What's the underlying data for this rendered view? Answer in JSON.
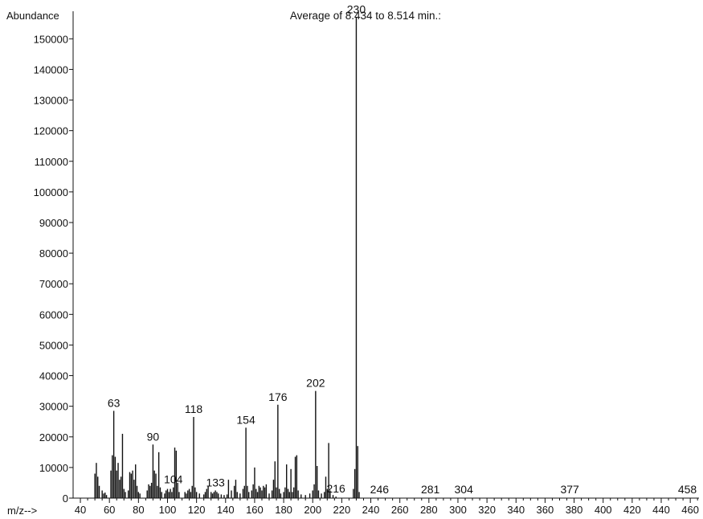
{
  "chart_data": {
    "type": "bar",
    "title": "Average of 8.434 to 8.514 min.:",
    "ylabel": "Abundance",
    "xlabel": "m/z-->",
    "xlim": [
      35,
      466
    ],
    "ylim": [
      0,
      159000
    ],
    "x_ticks": [
      40,
      60,
      80,
      100,
      120,
      140,
      160,
      180,
      200,
      220,
      240,
      260,
      280,
      300,
      320,
      340,
      360,
      380,
      400,
      420,
      440,
      460
    ],
    "y_ticks": [
      0,
      10000,
      20000,
      30000,
      40000,
      50000,
      60000,
      70000,
      80000,
      90000,
      100000,
      110000,
      120000,
      130000,
      140000,
      150000
    ],
    "grid": false,
    "peak_labels": [
      {
        "x": 63,
        "y": 28500,
        "label": "63"
      },
      {
        "x": 90,
        "y": 17500,
        "label": "90"
      },
      {
        "x": 104,
        "y": 3500,
        "label": "104"
      },
      {
        "x": 118,
        "y": 26500,
        "label": "118"
      },
      {
        "x": 133,
        "y": 2500,
        "label": "133"
      },
      {
        "x": 154,
        "y": 23000,
        "label": "154"
      },
      {
        "x": 176,
        "y": 30500,
        "label": "176"
      },
      {
        "x": 202,
        "y": 35000,
        "label": "202"
      },
      {
        "x": 216,
        "y": 500,
        "label": "216"
      },
      {
        "x": 230,
        "y": 157000,
        "label": "230"
      },
      {
        "x": 246,
        "y": 300,
        "label": "246"
      },
      {
        "x": 281,
        "y": 300,
        "label": "281"
      },
      {
        "x": 304,
        "y": 300,
        "label": "304"
      },
      {
        "x": 377,
        "y": 300,
        "label": "377"
      },
      {
        "x": 458,
        "y": 300,
        "label": "458"
      }
    ],
    "peaks": [
      {
        "x": 50,
        "y": 8000
      },
      {
        "x": 51,
        "y": 11500
      },
      {
        "x": 52,
        "y": 7000
      },
      {
        "x": 53,
        "y": 4000
      },
      {
        "x": 55,
        "y": 2500
      },
      {
        "x": 56,
        "y": 1500
      },
      {
        "x": 57,
        "y": 1800
      },
      {
        "x": 58,
        "y": 1000
      },
      {
        "x": 61,
        "y": 9000
      },
      {
        "x": 62,
        "y": 14000
      },
      {
        "x": 63,
        "y": 28500
      },
      {
        "x": 64,
        "y": 13500
      },
      {
        "x": 65,
        "y": 9000
      },
      {
        "x": 66,
        "y": 11500
      },
      {
        "x": 67,
        "y": 6000
      },
      {
        "x": 68,
        "y": 7000
      },
      {
        "x": 69,
        "y": 21000
      },
      {
        "x": 70,
        "y": 3000
      },
      {
        "x": 71,
        "y": 2000
      },
      {
        "x": 73,
        "y": 2500
      },
      {
        "x": 74,
        "y": 8500
      },
      {
        "x": 75,
        "y": 8000
      },
      {
        "x": 76,
        "y": 9000
      },
      {
        "x": 77,
        "y": 6000
      },
      {
        "x": 78,
        "y": 11000
      },
      {
        "x": 79,
        "y": 4000
      },
      {
        "x": 80,
        "y": 2000
      },
      {
        "x": 81,
        "y": 1500
      },
      {
        "x": 86,
        "y": 2500
      },
      {
        "x": 87,
        "y": 4500
      },
      {
        "x": 88,
        "y": 4000
      },
      {
        "x": 89,
        "y": 5000
      },
      {
        "x": 90,
        "y": 17500
      },
      {
        "x": 91,
        "y": 9000
      },
      {
        "x": 92,
        "y": 8000
      },
      {
        "x": 93,
        "y": 4000
      },
      {
        "x": 94,
        "y": 15000
      },
      {
        "x": 95,
        "y": 3500
      },
      {
        "x": 96,
        "y": 2000
      },
      {
        "x": 98,
        "y": 1500
      },
      {
        "x": 99,
        "y": 2500
      },
      {
        "x": 100,
        "y": 3000
      },
      {
        "x": 101,
        "y": 2000
      },
      {
        "x": 102,
        "y": 3000
      },
      {
        "x": 103,
        "y": 2000
      },
      {
        "x": 104,
        "y": 3500
      },
      {
        "x": 105,
        "y": 16500
      },
      {
        "x": 106,
        "y": 15500
      },
      {
        "x": 107,
        "y": 5000
      },
      {
        "x": 108,
        "y": 2000
      },
      {
        "x": 112,
        "y": 2000
      },
      {
        "x": 113,
        "y": 1500
      },
      {
        "x": 114,
        "y": 2500
      },
      {
        "x": 115,
        "y": 3000
      },
      {
        "x": 116,
        "y": 2000
      },
      {
        "x": 117,
        "y": 4000
      },
      {
        "x": 118,
        "y": 26500
      },
      {
        "x": 119,
        "y": 3500
      },
      {
        "x": 120,
        "y": 2000
      },
      {
        "x": 122,
        "y": 1500
      },
      {
        "x": 125,
        "y": 1200
      },
      {
        "x": 126,
        "y": 2000
      },
      {
        "x": 127,
        "y": 3000
      },
      {
        "x": 128,
        "y": 4000
      },
      {
        "x": 130,
        "y": 2000
      },
      {
        "x": 131,
        "y": 1500
      },
      {
        "x": 132,
        "y": 2000
      },
      {
        "x": 133,
        "y": 2500
      },
      {
        "x": 134,
        "y": 2000
      },
      {
        "x": 135,
        "y": 1500
      },
      {
        "x": 137,
        "y": 1200
      },
      {
        "x": 139,
        "y": 1000
      },
      {
        "x": 141,
        "y": 1200
      },
      {
        "x": 142,
        "y": 6000
      },
      {
        "x": 144,
        "y": 2500
      },
      {
        "x": 146,
        "y": 4000
      },
      {
        "x": 147,
        "y": 6000
      },
      {
        "x": 148,
        "y": 2000
      },
      {
        "x": 150,
        "y": 1500
      },
      {
        "x": 152,
        "y": 3000
      },
      {
        "x": 153,
        "y": 4000
      },
      {
        "x": 154,
        "y": 23000
      },
      {
        "x": 155,
        "y": 4000
      },
      {
        "x": 156,
        "y": 2000
      },
      {
        "x": 158,
        "y": 2500
      },
      {
        "x": 159,
        "y": 4500
      },
      {
        "x": 160,
        "y": 10000
      },
      {
        "x": 161,
        "y": 3000
      },
      {
        "x": 162,
        "y": 2000
      },
      {
        "x": 163,
        "y": 4000
      },
      {
        "x": 164,
        "y": 3500
      },
      {
        "x": 165,
        "y": 2500
      },
      {
        "x": 166,
        "y": 4000
      },
      {
        "x": 167,
        "y": 3500
      },
      {
        "x": 168,
        "y": 4500
      },
      {
        "x": 170,
        "y": 1500
      },
      {
        "x": 172,
        "y": 2500
      },
      {
        "x": 173,
        "y": 6000
      },
      {
        "x": 174,
        "y": 12000
      },
      {
        "x": 175,
        "y": 3500
      },
      {
        "x": 176,
        "y": 30500
      },
      {
        "x": 177,
        "y": 3000
      },
      {
        "x": 178,
        "y": 1500
      },
      {
        "x": 180,
        "y": 2000
      },
      {
        "x": 181,
        "y": 3500
      },
      {
        "x": 182,
        "y": 11000
      },
      {
        "x": 183,
        "y": 3000
      },
      {
        "x": 184,
        "y": 2000
      },
      {
        "x": 185,
        "y": 9500
      },
      {
        "x": 186,
        "y": 2000
      },
      {
        "x": 187,
        "y": 3500
      },
      {
        "x": 188,
        "y": 13500
      },
      {
        "x": 189,
        "y": 14000
      },
      {
        "x": 190,
        "y": 2500
      },
      {
        "x": 192,
        "y": 1200
      },
      {
        "x": 195,
        "y": 1000
      },
      {
        "x": 198,
        "y": 1500
      },
      {
        "x": 200,
        "y": 2500
      },
      {
        "x": 201,
        "y": 4500
      },
      {
        "x": 202,
        "y": 35000
      },
      {
        "x": 203,
        "y": 10500
      },
      {
        "x": 204,
        "y": 2500
      },
      {
        "x": 206,
        "y": 1500
      },
      {
        "x": 208,
        "y": 2000
      },
      {
        "x": 209,
        "y": 7000
      },
      {
        "x": 210,
        "y": 3000
      },
      {
        "x": 211,
        "y": 18000
      },
      {
        "x": 212,
        "y": 2500
      },
      {
        "x": 214,
        "y": 1000
      },
      {
        "x": 216,
        "y": 500
      },
      {
        "x": 228,
        "y": 3000
      },
      {
        "x": 229,
        "y": 9500
      },
      {
        "x": 230,
        "y": 157000
      },
      {
        "x": 231,
        "y": 17000
      },
      {
        "x": 232,
        "y": 2000
      }
    ]
  }
}
